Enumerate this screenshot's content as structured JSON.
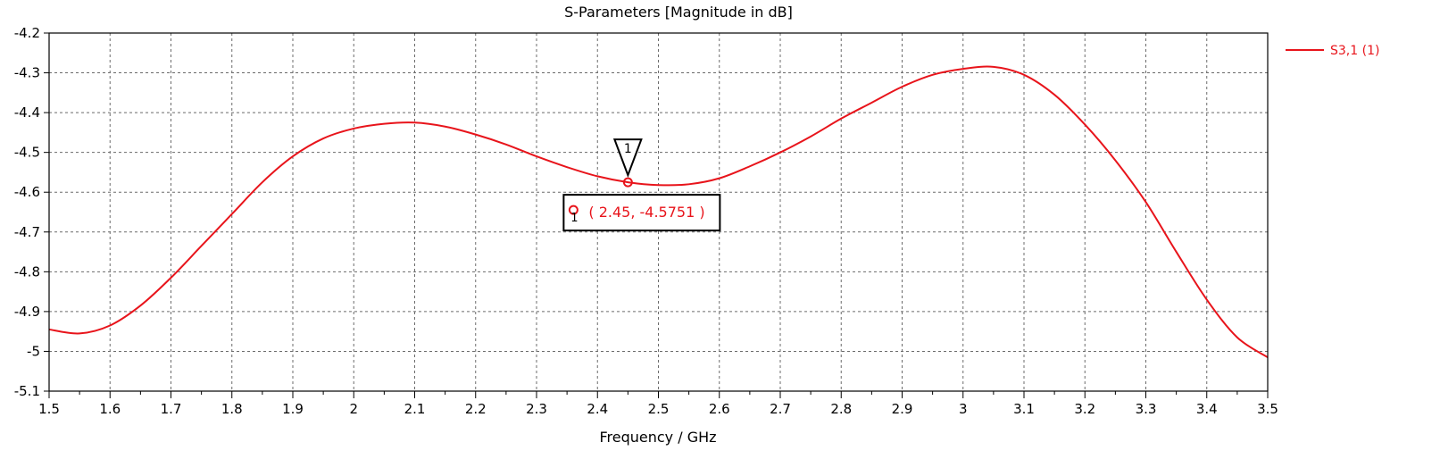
{
  "chart_data": {
    "type": "line",
    "title": "S-Parameters [Magnitude in dB]",
    "xlabel": "Frequency / GHz",
    "ylabel": "",
    "xlim": [
      1.5,
      3.5
    ],
    "ylim": [
      -5.1,
      -4.2
    ],
    "x_ticks": [
      "1.5",
      "1.6",
      "1.7",
      "1.8",
      "1.9",
      "2",
      "2.1",
      "2.2",
      "2.3",
      "2.4",
      "2.5",
      "2.6",
      "2.7",
      "2.8",
      "2.9",
      "3",
      "3.1",
      "3.2",
      "3.3",
      "3.4",
      "3.5"
    ],
    "y_ticks": [
      "-4.2",
      "-4.3",
      "-4.4",
      "-4.5",
      "-4.6",
      "-4.7",
      "-4.8",
      "-4.9",
      "-5",
      "-5.1"
    ],
    "grid": true,
    "legend_position": "top-right",
    "colors": {
      "series": "#e8141b",
      "grid": "#6b6b6b",
      "frame": "#000000"
    },
    "series": [
      {
        "name": "S3,1 (1)",
        "x": [
          1.5,
          1.55,
          1.6,
          1.65,
          1.7,
          1.75,
          1.8,
          1.85,
          1.9,
          1.95,
          2.0,
          2.05,
          2.1,
          2.15,
          2.2,
          2.25,
          2.3,
          2.35,
          2.4,
          2.45,
          2.5,
          2.55,
          2.6,
          2.65,
          2.7,
          2.75,
          2.8,
          2.85,
          2.9,
          2.95,
          3.0,
          3.05,
          3.1,
          3.15,
          3.2,
          3.25,
          3.3,
          3.35,
          3.4,
          3.45,
          3.5
        ],
        "y": [
          -4.945,
          -4.955,
          -4.935,
          -4.885,
          -4.815,
          -4.735,
          -4.655,
          -4.575,
          -4.51,
          -4.465,
          -4.44,
          -4.428,
          -4.425,
          -4.435,
          -4.455,
          -4.48,
          -4.51,
          -4.537,
          -4.56,
          -4.575,
          -4.582,
          -4.58,
          -4.565,
          -4.535,
          -4.5,
          -4.46,
          -4.415,
          -4.375,
          -4.335,
          -4.305,
          -4.29,
          -4.285,
          -4.305,
          -4.355,
          -4.43,
          -4.52,
          -4.625,
          -4.75,
          -4.87,
          -4.965,
          -5.015
        ]
      }
    ],
    "marker": {
      "id": "1",
      "x": 2.45,
      "y": -4.5751,
      "label": "( 2.45, -4.5751 )"
    }
  }
}
